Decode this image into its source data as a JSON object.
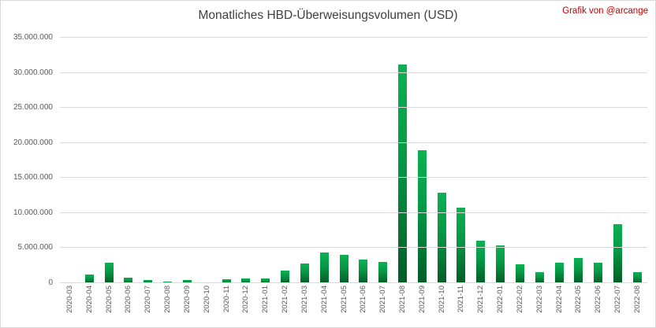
{
  "header": {
    "title": "Monatliches HBD-Überweisungsvolumen (USD)",
    "credit": "Grafik von @arcange"
  },
  "chart_data": {
    "type": "bar",
    "title": "Monatliches HBD-Überweisungsvolumen (USD)",
    "categories": [
      "2020-03",
      "2020-04",
      "2020-05",
      "2020-06",
      "2020-07",
      "2020-08",
      "2020-09",
      "2020-10",
      "2020-11",
      "2020-12",
      "2021-01",
      "2021-02",
      "2021-03",
      "2021-04",
      "2021-05",
      "2021-06",
      "2021-07",
      "2021-08",
      "2021-09",
      "2021-10",
      "2021-11",
      "2021-12",
      "2022-01",
      "2022-02",
      "2022-03",
      "2022-04",
      "2022-05",
      "2022-06",
      "2022-07",
      "2022-08"
    ],
    "values": [
      60000,
      1200000,
      2900000,
      800000,
      500000,
      200000,
      450000,
      60000,
      550000,
      700000,
      650000,
      1800000,
      2800000,
      4400000,
      4000000,
      3400000,
      3000000,
      31200000,
      19000000,
      12900000,
      10800000,
      6100000,
      5400000,
      2700000,
      1550000,
      2900000,
      3550000,
      2900000,
      8400000,
      1600000
    ],
    "xlabel": "",
    "ylabel": "",
    "ylim": [
      0,
      35000000
    ],
    "ytick_values": [
      0,
      5000000,
      10000000,
      15000000,
      20000000,
      25000000,
      30000000,
      35000000
    ],
    "ytick_labels": [
      "0",
      "5.000.000",
      "10.000.000",
      "15.000.000",
      "20.000.000",
      "25.000.000",
      "30.000.000",
      "35.000.000"
    ],
    "grid": "horizontal",
    "legend_position": "none"
  },
  "colors": {
    "background": "#ffffff",
    "border": "#d9d9d9",
    "gridline": "#d9d9d9",
    "title_text": "#404040",
    "credit_text": "#c00000",
    "axis_label_text": "#595959",
    "bar_gradient_top": "#0db153",
    "bar_gradient_bottom": "#025c27"
  }
}
